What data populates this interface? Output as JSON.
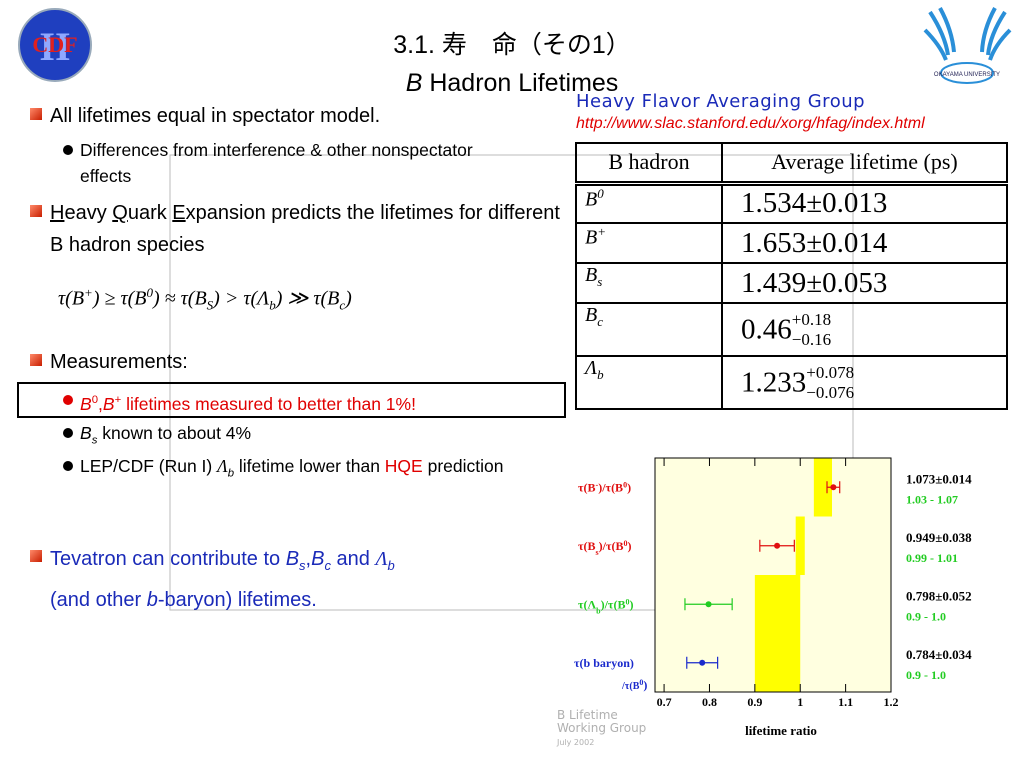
{
  "header": {
    "title": "3.1. 寿　命（その1）",
    "subtitle_italic": "B",
    "subtitle": "Hadron Lifetimes"
  },
  "logos": {
    "left": "CDF",
    "left_mark": "II",
    "right": "OKAYAMA UNIVERSITY"
  },
  "bullets": [
    {
      "text": [
        "All lifetimes equal in spectator model."
      ],
      "sub": [
        [
          "Differences from interference & other nonspectator effects"
        ]
      ]
    },
    {
      "text": [
        "H",
        "eavy ",
        "Q",
        "uark ",
        "E",
        "xpansion predicts the lifetimes for different B hadron species"
      ]
    },
    {
      "text": [
        "Measurements:"
      ],
      "sub": [
        [
          "B",
          "0",
          ",",
          "B",
          "+",
          " lifetimes measured to better than 1%!"
        ],
        [
          "B",
          "s",
          " known to about 4%"
        ],
        [
          "LEP/CDF (Run I) ",
          "Λ",
          "b",
          " lifetime lower than ",
          "HQE",
          " prediction"
        ]
      ]
    },
    {
      "text": [
        "Tevatron can contribute to ",
        "B",
        "s",
        ",",
        "B",
        "c",
        " and ",
        "Λ",
        "b",
        "(and other ",
        "b",
        "-baryon) lifetimes."
      ]
    }
  ],
  "formula": [
    "τ(B",
    "+",
    ") ≥ τ(B",
    "0",
    ") ≈ τ(B",
    "S",
    ") > τ(Λ",
    "b",
    ") ≫ τ(B",
    "c",
    ")"
  ],
  "table": {
    "source": "Heavy Flavor Averaging Group",
    "url": "http://www.slac.stanford.edu/xorg/hfag/index.html",
    "headers": [
      "B hadron",
      "Average lifetime (ps)"
    ],
    "rows": [
      {
        "hadron": [
          "B",
          "0"
        ],
        "lifetime": [
          "1.534±0.013"
        ]
      },
      {
        "hadron": [
          "B",
          "+"
        ],
        "lifetime": [
          "1.653±0.014"
        ]
      },
      {
        "hadron": [
          "B",
          "s"
        ],
        "lifetime": [
          "1.439±0.053"
        ]
      },
      {
        "hadron": [
          "B",
          "c"
        ],
        "lifetime": [
          "0.46",
          "+0.18",
          "−0.16"
        ]
      },
      {
        "hadron": [
          "Λ",
          "b"
        ],
        "lifetime": [
          "1.233",
          "+0.078",
          "−0.076"
        ]
      }
    ]
  },
  "plot": {
    "labels": [
      [
        "τ(B",
        "-",
        ")/τ(B",
        "0",
        ")"
      ],
      [
        "τ(B",
        "s",
        ")/τ(B",
        "0",
        ")"
      ],
      [
        "τ(Λ",
        "b",
        ")/τ(B",
        "0",
        ")"
      ],
      [
        "τ(b baryon)",
        "/τ(B",
        "0",
        ")"
      ]
    ],
    "values": [
      1.073,
      0.949,
      0.798,
      0.784
    ],
    "errors": [
      0.014,
      0.038,
      0.052,
      0.034
    ],
    "value_labels": [
      "1.073±0.014",
      "0.949±0.038",
      "0.798±0.052",
      "0.784±0.034"
    ],
    "colors": [
      "#e01010",
      "#e01010",
      "#22cc22",
      "#1a2acc"
    ],
    "ranges": [
      [
        1.03,
        1.07
      ],
      [
        0.99,
        1.01
      ],
      [
        0.9,
        1.0
      ],
      [
        0.9,
        1.0
      ]
    ],
    "range_labels": [
      "1.03 - 1.07",
      "0.99 - 1.01",
      "0.9 - 1.0",
      "0.9 - 1.0"
    ],
    "range_color": "#ffff00",
    "xlim": [
      0.68,
      1.2
    ],
    "xticks": [
      0.7,
      0.8,
      0.9,
      1,
      1.1,
      1.2
    ],
    "xlabel": "lifetime ratio",
    "watermark": [
      "B Lifetime",
      "Working Group",
      "July 2002"
    ]
  }
}
